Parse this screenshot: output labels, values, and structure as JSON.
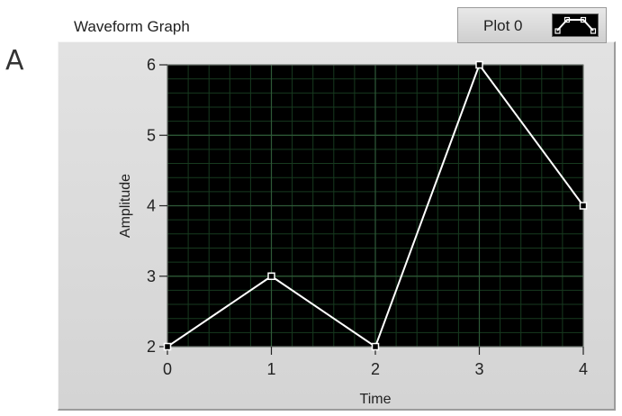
{
  "panel_letter": "A",
  "graph": {
    "label": "Waveform Graph",
    "legend": {
      "plot_name": "Plot 0"
    }
  },
  "colors": {
    "plot_area": "#000000",
    "grid_major": "#2f5a38",
    "grid_minor": "#173a1f",
    "trace": "#ffffff",
    "frame": "#d8d8d8"
  },
  "chart_data": {
    "type": "line",
    "xlabel": "Time",
    "ylabel": "Amplitude",
    "x": [
      0,
      1,
      2,
      3,
      4
    ],
    "series": [
      {
        "name": "Plot 0",
        "values": [
          2,
          3,
          2,
          6,
          4
        ]
      }
    ],
    "xlim": [
      0,
      4
    ],
    "ylim": [
      2,
      6
    ],
    "xticks": [
      0,
      1,
      2,
      3,
      4
    ],
    "yticks": [
      2,
      3,
      4,
      5,
      6
    ],
    "grid": true,
    "markers": "square"
  }
}
